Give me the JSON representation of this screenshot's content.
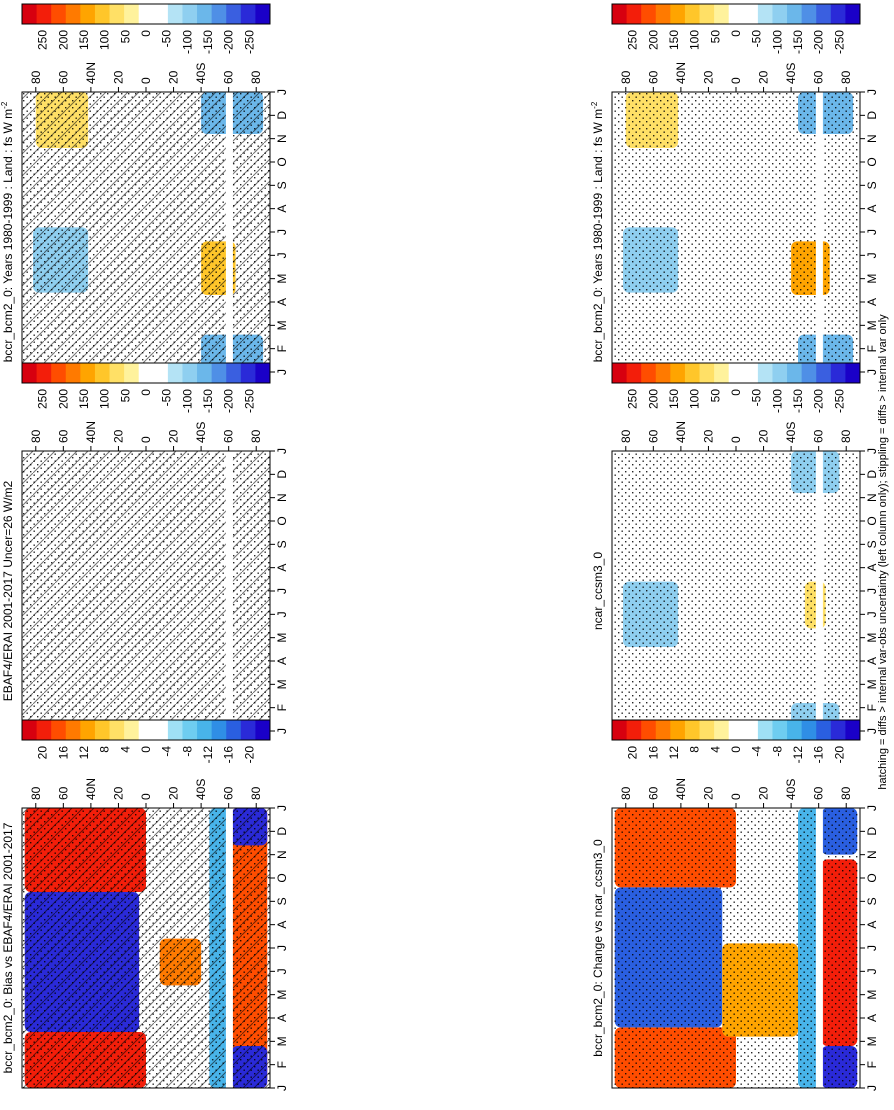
{
  "page": {
    "footnote": "hatching = diffs > internal var-obs uncertainty (left column only); stippling = diffs > internal var only"
  },
  "chart_data": [
    {
      "type": "heatmap",
      "id": "left-top",
      "title_parts": [
        "bccr_bcm2_0: Years 1980-1999 : Land : fs W m",
        "-2"
      ],
      "months": [
        "J",
        "F",
        "M",
        "A",
        "M",
        "J",
        "J",
        "A",
        "S",
        "O",
        "N",
        "D",
        "J"
      ],
      "lat_labels": [
        "80",
        "60",
        "40",
        "20",
        "0",
        "20",
        "40",
        "60",
        "80"
      ],
      "lat_suffix": {
        "2": "N",
        "6": "S"
      },
      "colorbar_ticks": [
        "250",
        "200",
        "150",
        "100",
        "50",
        "0",
        "-50",
        "-100",
        "-150",
        "-200",
        "-250"
      ],
      "palette": "flux",
      "hatching": "dense",
      "blobs": [
        {
          "kind": "pos",
          "mon": [
            3.3,
            5.6
          ],
          "lat": [
            -65,
            -40
          ],
          "v": 100
        },
        {
          "kind": "pos",
          "mon": [
            9.6,
            12.3
          ],
          "lat": [
            42,
            80
          ],
          "v": 60
        },
        {
          "kind": "neg",
          "mon": [
            0,
            1.6
          ],
          "lat": [
            -85,
            -40
          ],
          "v": -120
        },
        {
          "kind": "neg",
          "mon": [
            10.2,
            13
          ],
          "lat": [
            -85,
            -40
          ],
          "v": -120
        },
        {
          "kind": "neg",
          "mon": [
            3.4,
            6.2
          ],
          "lat": [
            42,
            82
          ],
          "v": -90
        }
      ]
    },
    {
      "type": "heatmap",
      "id": "left-middle",
      "title": "EBAF4/ERAI 2001-2017 Uncer=26 W/m2",
      "months": [
        "J",
        "F",
        "M",
        "A",
        "M",
        "J",
        "J",
        "A",
        "S",
        "O",
        "N",
        "D",
        "J"
      ],
      "lat_labels": [
        "80",
        "60",
        "40",
        "20",
        "0",
        "20",
        "40",
        "60",
        "80"
      ],
      "lat_suffix": {
        "2": "N",
        "6": "S"
      },
      "colorbar_ticks": [
        "250",
        "200",
        "150",
        "100",
        "50",
        "0",
        "-50",
        "-100",
        "-150",
        "-200",
        "-250"
      ],
      "palette": "flux",
      "hatching": "dense",
      "blobs": []
    },
    {
      "type": "heatmap",
      "id": "left-bottom",
      "title": "bccr_bcm2_0: Bias vs EBAF4/ERAI 2001-2017",
      "months": [
        "J",
        "F",
        "M",
        "A",
        "M",
        "J",
        "J",
        "A",
        "S",
        "O",
        "N",
        "D",
        "J"
      ],
      "lat_labels": [
        "80",
        "60",
        "40",
        "20",
        "0",
        "20",
        "40",
        "60",
        "80"
      ],
      "lat_suffix": {
        "2": "N",
        "6": "S"
      },
      "colorbar_ticks": [
        "20",
        "16",
        "12",
        "8",
        "4",
        "0",
        "-4",
        "-8",
        "-12",
        "-16",
        "-20"
      ],
      "palette": "bias",
      "hatching": "dense",
      "blobs": [
        {
          "kind": "pos",
          "mon": [
            0,
            2.4
          ],
          "lat": [
            0,
            88
          ],
          "v": 18
        },
        {
          "kind": "pos",
          "mon": [
            8.4,
            13
          ],
          "lat": [
            0,
            88
          ],
          "v": 18
        },
        {
          "kind": "neg",
          "mon": [
            2.4,
            8.4
          ],
          "lat": [
            5,
            88
          ],
          "v": -18
        },
        {
          "kind": "pos",
          "mon": [
            4.4,
            6.4
          ],
          "lat": [
            -40,
            -10
          ],
          "v": 12
        },
        {
          "kind": "pos",
          "mon": [
            0,
            13
          ],
          "lat": [
            -88,
            -62
          ],
          "v": 16
        },
        {
          "kind": "neg",
          "mon": [
            0,
            1.8
          ],
          "lat": [
            -88,
            -62
          ],
          "v": -18
        },
        {
          "kind": "neg",
          "mon": [
            10.4,
            13
          ],
          "lat": [
            -88,
            -62
          ],
          "v": -18
        },
        {
          "kind": "neg",
          "mon": [
            0,
            13
          ],
          "lat": [
            -62,
            -46
          ],
          "v": -10
        }
      ]
    },
    {
      "type": "heatmap",
      "id": "right-top",
      "title_parts": [
        "bccr_bcm2_0: Years 1980-1999 : Land : fs W m",
        "-2"
      ],
      "months": [
        "J",
        "F",
        "M",
        "A",
        "M",
        "J",
        "J",
        "A",
        "S",
        "O",
        "N",
        "D",
        "J"
      ],
      "lat_labels": [
        "80",
        "60",
        "40",
        "20",
        "0",
        "20",
        "40",
        "60",
        "80"
      ],
      "lat_suffix": {
        "2": "N",
        "6": "S"
      },
      "colorbar_ticks": [
        "250",
        "200",
        "150",
        "100",
        "50",
        "0",
        "-50",
        "-100",
        "-150",
        "-200",
        "-250"
      ],
      "palette": "flux",
      "hatching": "none",
      "blobs": [
        {
          "kind": "pos",
          "mon": [
            3.3,
            5.6
          ],
          "lat": [
            -68,
            -40
          ],
          "v": 110
        },
        {
          "kind": "pos",
          "mon": [
            9.6,
            12.3
          ],
          "lat": [
            42,
            80
          ],
          "v": 60
        },
        {
          "kind": "neg",
          "mon": [
            0,
            1.6
          ],
          "lat": [
            -85,
            -45
          ],
          "v": -120
        },
        {
          "kind": "neg",
          "mon": [
            10.2,
            13
          ],
          "lat": [
            -85,
            -45
          ],
          "v": -120
        },
        {
          "kind": "neg",
          "mon": [
            3.4,
            6.2
          ],
          "lat": [
            42,
            82
          ],
          "v": -90
        }
      ]
    },
    {
      "type": "heatmap",
      "id": "right-middle",
      "title": "ncar_ccsm3_0",
      "months": [
        "J",
        "F",
        "M",
        "A",
        "M",
        "J",
        "J",
        "A",
        "S",
        "O",
        "N",
        "D",
        "J"
      ],
      "lat_labels": [
        "80",
        "60",
        "40",
        "20",
        "0",
        "20",
        "40",
        "60",
        "80"
      ],
      "lat_suffix": {
        "2": "N",
        "6": "S"
      },
      "colorbar_ticks": [
        "250",
        "200",
        "150",
        "100",
        "50",
        "0",
        "-50",
        "-100",
        "-150",
        "-200",
        "-250"
      ],
      "palette": "flux",
      "hatching": "none",
      "blobs": [
        {
          "kind": "neg",
          "mon": [
            3.6,
            6.4
          ],
          "lat": [
            42,
            82
          ],
          "v": -80
        },
        {
          "kind": "neg",
          "mon": [
            0,
            1.2
          ],
          "lat": [
            -75,
            -40
          ],
          "v": -80
        },
        {
          "kind": "neg",
          "mon": [
            10.2,
            13
          ],
          "lat": [
            -75,
            -40
          ],
          "v": -80
        },
        {
          "kind": "pos",
          "mon": [
            4.4,
            6.4
          ],
          "lat": [
            -65,
            -50
          ],
          "v": 60
        }
      ]
    },
    {
      "type": "heatmap",
      "id": "right-bottom",
      "title": "bccr_bcm2_0: Change vs ncar_ccsm3_0",
      "months": [
        "J",
        "F",
        "M",
        "A",
        "M",
        "J",
        "J",
        "A",
        "S",
        "O",
        "N",
        "D",
        "J"
      ],
      "lat_labels": [
        "80",
        "60",
        "40",
        "20",
        "0",
        "20",
        "40",
        "60",
        "80"
      ],
      "lat_suffix": {
        "2": "N",
        "6": "S"
      },
      "colorbar_ticks": [
        "20",
        "16",
        "12",
        "8",
        "4",
        "0",
        "-4",
        "-8",
        "-12",
        "-16",
        "-20"
      ],
      "palette": "bias",
      "hatching": "sparse",
      "blobs": [
        {
          "kind": "pos",
          "mon": [
            0,
            2.6
          ],
          "lat": [
            0,
            88
          ],
          "v": 14
        },
        {
          "kind": "pos",
          "mon": [
            8.6,
            13
          ],
          "lat": [
            0,
            88
          ],
          "v": 16
        },
        {
          "kind": "neg",
          "mon": [
            2.6,
            8.6
          ],
          "lat": [
            10,
            88
          ],
          "v": -14
        },
        {
          "kind": "pos",
          "mon": [
            2.2,
            6.2
          ],
          "lat": [
            -45,
            10
          ],
          "v": 10
        },
        {
          "kind": "pos",
          "mon": [
            1.8,
            9.8
          ],
          "lat": [
            -88,
            -62
          ],
          "v": 18
        },
        {
          "kind": "neg",
          "mon": [
            0,
            1.8
          ],
          "lat": [
            -88,
            -62
          ],
          "v": -18
        },
        {
          "kind": "neg",
          "mon": [
            10,
            13
          ],
          "lat": [
            -88,
            -62
          ],
          "v": -16
        },
        {
          "kind": "neg",
          "mon": [
            0,
            13
          ],
          "lat": [
            -62,
            -45
          ],
          "v": -10
        }
      ]
    }
  ]
}
